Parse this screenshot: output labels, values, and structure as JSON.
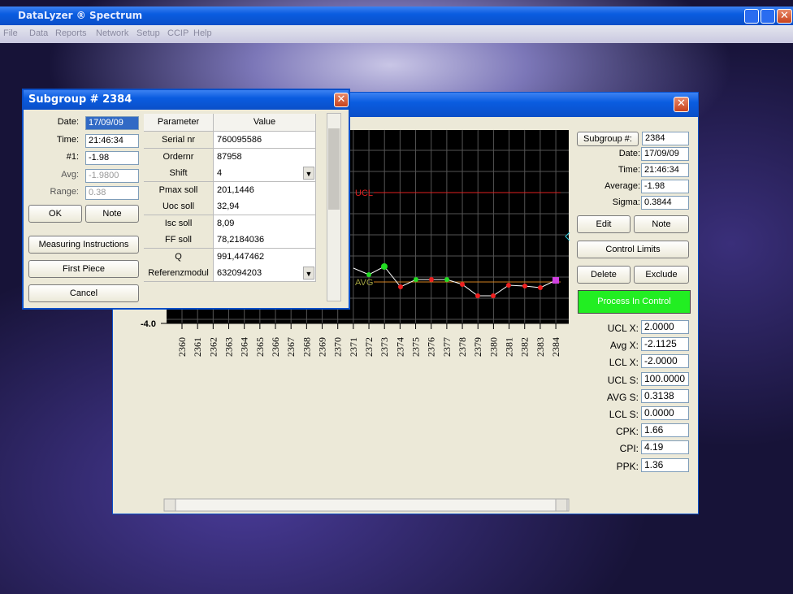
{
  "app": {
    "title": "DataLyzer ® Spectrum",
    "menu": [
      "File",
      "Data",
      "Reports",
      "Network",
      "Setup",
      "CCIP",
      "Help"
    ]
  },
  "subgroup_dialog": {
    "title": "Subgroup # 2384",
    "fields": [
      {
        "label": "Date:",
        "value": "17/09/09"
      },
      {
        "label": "Time:",
        "value": "21:46:34"
      },
      {
        "label": "#1:",
        "value": "-1.98"
      },
      {
        "label": "Avg:",
        "value": "-1.9800"
      },
      {
        "label": "Range:",
        "value": "0.38"
      }
    ],
    "buttons": {
      "ok": "OK",
      "note": "Note",
      "measuring": "Measuring Instructions",
      "first_piece": "First Piece",
      "cancel": "Cancel"
    },
    "table": {
      "headers": [
        "Parameter",
        "Value"
      ],
      "rows": [
        [
          "Serial nr",
          "760095586"
        ],
        [
          "Ordernr",
          "87958"
        ],
        [
          "Shift",
          "4"
        ],
        [
          "Pmax soll",
          "201,1446"
        ],
        [
          "Uoc soll",
          "32,94"
        ],
        [
          "Isc soll",
          "8,09"
        ],
        [
          "FF soll",
          "78,2184036"
        ],
        [
          "Q",
          "991,447462"
        ],
        [
          "Referenzmodul",
          "632094203"
        ]
      ]
    }
  },
  "chart_window": {
    "y_label": "-4.0",
    "ucl_label": "UCL",
    "avg_label": "AVG",
    "x_labels": [
      "2360",
      "2361",
      "2362",
      "2363",
      "2364",
      "2365",
      "2366",
      "2367",
      "2368",
      "2369",
      "2370",
      "2371",
      "2372",
      "2373",
      "2374",
      "2375",
      "2376",
      "2377",
      "2378",
      "2379",
      "2380",
      "2381",
      "2382",
      "2383",
      "2384"
    ],
    "subgroup_button": "Subgroup #:",
    "subgroup_value": "2384",
    "info": [
      {
        "label": "Date:",
        "value": "17/09/09"
      },
      {
        "label": "Time:",
        "value": "21:46:34"
      },
      {
        "label": "Average:",
        "value": "-1.98"
      },
      {
        "label": "Sigma:",
        "value": "0.3844"
      }
    ],
    "buttons": {
      "edit": "Edit",
      "note": "Note",
      "control_limits": "Control Limits",
      "delete": "Delete",
      "exclude": "Exclude"
    },
    "status": "Process In Control",
    "stats": [
      {
        "label": "UCL X:",
        "value": "2.0000"
      },
      {
        "label": "Avg X:",
        "value": "-2.1125"
      },
      {
        "label": "LCL X:",
        "value": "-2.0000"
      },
      {
        "label": "UCL S:",
        "value": "100.0000"
      },
      {
        "label": "AVG S:",
        "value": "0.3138"
      },
      {
        "label": "LCL S:",
        "value": "0.0000"
      },
      {
        "label": "CPK:",
        "value": "1.66"
      },
      {
        "label": "CPI:",
        "value": "4.19"
      },
      {
        "label": "PPK:",
        "value": "1.36"
      }
    ]
  }
}
